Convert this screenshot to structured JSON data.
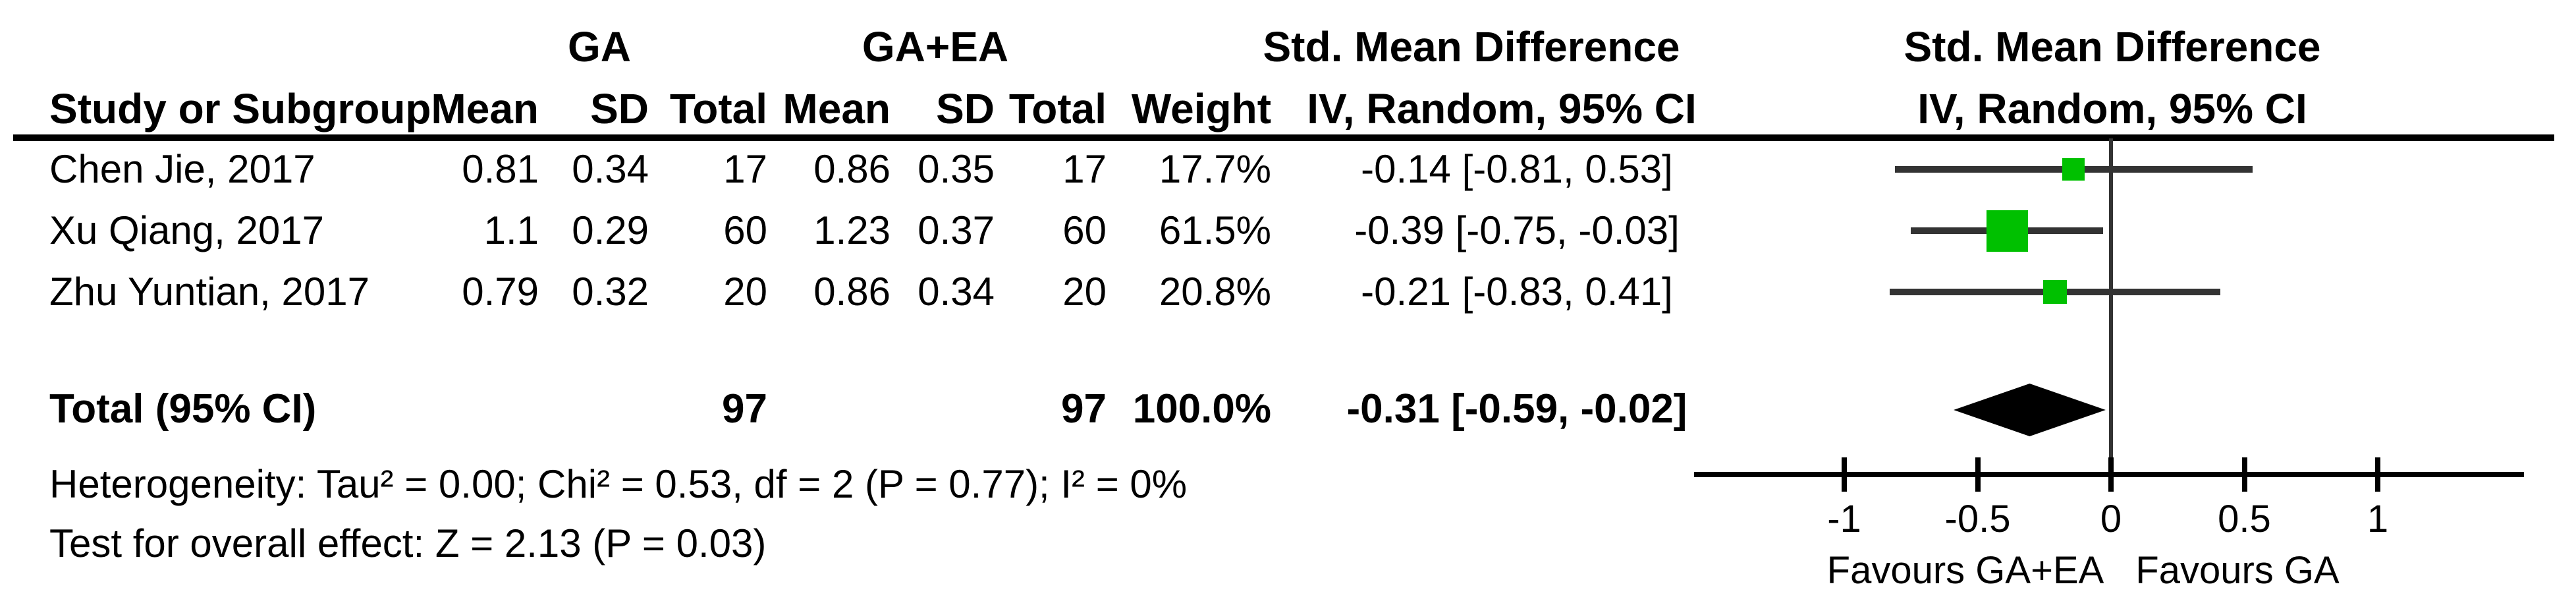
{
  "colors": {
    "marker_green": "#00c000",
    "line": "#333333",
    "black": "#000000",
    "background": "#ffffff"
  },
  "table_headers": {
    "group_ga": "GA",
    "group_gaea": "GA+EA",
    "smd_left": "Std. Mean Difference",
    "smd_right": "Std. Mean Difference",
    "study": "Study or Subgroup",
    "ga_mean": "Mean",
    "ga_sd": "SD",
    "ga_total": "Total",
    "gaea_mean": "Mean",
    "gaea_sd": "SD",
    "gaea_total": "Total",
    "weight": "Weight",
    "iv_left": "IV, Random, 95% CI",
    "iv_right": "IV, Random, 95% CI"
  },
  "footer": {
    "heterogeneity": "Heterogeneity: Tau² = 0.00; Chi² = 0.53, df = 2 (P = 0.77); I² = 0%",
    "overall_effect": "Test for overall effect: Z = 2.13 (P = 0.03)"
  },
  "chart_data": {
    "type": "scatter",
    "variant": "forest_plot",
    "effect_measure": "Std. Mean Difference, IV, Random, 95% CI",
    "studies": [
      {
        "label": "Chen Jie, 2017",
        "ga_mean": "0.81",
        "ga_sd": "0.34",
        "ga_total": "17",
        "gaea_mean": "0.86",
        "gaea_sd": "0.35",
        "gaea_total": "17",
        "weight": "17.7%",
        "smd_ci": "-0.14 [-0.81, 0.53]",
        "smd": -0.14,
        "ci_lower": -0.81,
        "ci_upper": 0.53,
        "weight_pct": 17.7
      },
      {
        "label": "Xu Qiang, 2017",
        "ga_mean": "1.1",
        "ga_sd": "0.29",
        "ga_total": "60",
        "gaea_mean": "1.23",
        "gaea_sd": "0.37",
        "gaea_total": "60",
        "weight": "61.5%",
        "smd_ci": "-0.39 [-0.75, -0.03]",
        "smd": -0.39,
        "ci_lower": -0.75,
        "ci_upper": -0.03,
        "weight_pct": 61.5
      },
      {
        "label": "Zhu Yuntian, 2017",
        "ga_mean": "0.79",
        "ga_sd": "0.32",
        "ga_total": "20",
        "gaea_mean": "0.86",
        "gaea_sd": "0.34",
        "gaea_total": "20",
        "weight": "20.8%",
        "smd_ci": "-0.21 [-0.83, 0.41]",
        "smd": -0.21,
        "ci_lower": -0.83,
        "ci_upper": 0.41,
        "weight_pct": 20.8
      }
    ],
    "total": {
      "label": "Total (95% CI)",
      "ga_total": "97",
      "gaea_total": "97",
      "weight": "100.0%",
      "smd_ci": "-0.31 [-0.59, -0.02]",
      "smd": -0.31,
      "ci_lower": -0.59,
      "ci_upper": -0.02
    },
    "axis": {
      "xlim": [
        -1.56,
        1.55
      ],
      "tick_values": [
        -1,
        -0.5,
        0,
        0.5,
        1
      ],
      "tick_labels": [
        "-1",
        "-0.5",
        "0",
        "0.5",
        "1"
      ],
      "favours_left": "Favours GA+EA",
      "favours_right": "Favours GA",
      "grid": false,
      "zero_line": 0
    }
  }
}
